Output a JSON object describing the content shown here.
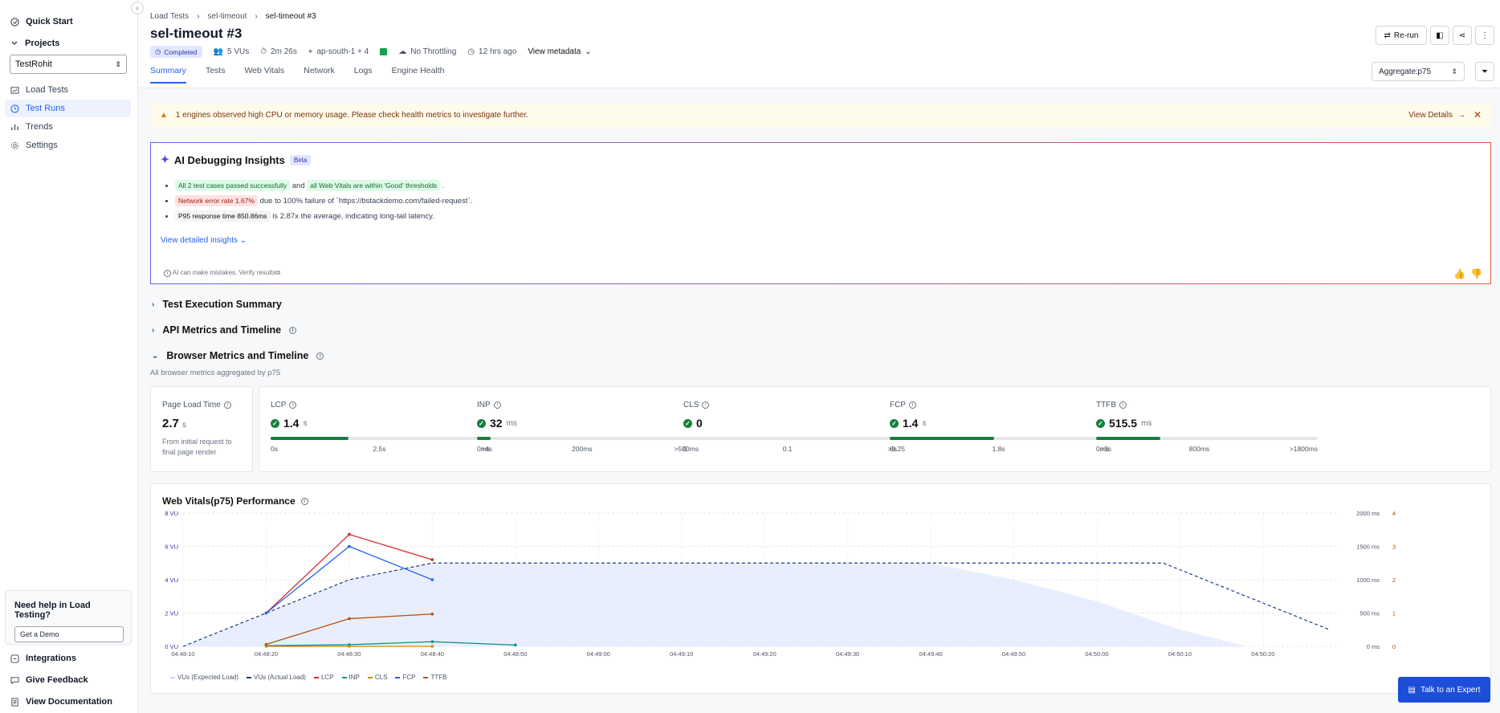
{
  "sidebar": {
    "quick_start": "Quick Start",
    "projects": "Projects",
    "project_selected": "TestRohit",
    "items": [
      "Load Tests",
      "Test Runs",
      "Trends",
      "Settings"
    ],
    "help_title": "Need help in Load Testing?",
    "help_button": "Get a Demo",
    "footer": [
      "Integrations",
      "Give Feedback",
      "View Documentation"
    ]
  },
  "header": {
    "breadcrumbs": [
      "Load Tests",
      "sel-timeout",
      "sel-timeout #3"
    ],
    "title": "sel-timeout #3",
    "status": "Completed",
    "vus": "5 VUs",
    "duration": "2m 26s",
    "region": "ap-south-1 + 4",
    "throttling": "No Throttling",
    "time_ago": "12 hrs ago",
    "view_metadata": "View metadata",
    "rerun": "Re-run",
    "tabs": [
      "Summary",
      "Tests",
      "Web Vitals",
      "Network",
      "Logs",
      "Engine Health"
    ],
    "aggregate_label": "Aggregate:",
    "aggregate_value": "p75"
  },
  "warning": {
    "text": "1 engines observed high CPU or memory usage. Please check health metrics to investigate further.",
    "action": "View Details"
  },
  "ai": {
    "title": "AI Debugging Insights",
    "beta": "Beta",
    "b1_chip1": "All 2 test cases passed successfully",
    "b1_mid": "and",
    "b1_chip2": "all Web Vitals are within 'Good' thresholds",
    "b1_end": ".",
    "b2_chip": "Network error rate 1.67%",
    "b2_text": "due to 100% failure of `https://bstackdemo.com/failed-request`.",
    "b3_chip": "P95 response time 850.86ms",
    "b3_text": "is 2.87x the average, indicating long-tail latency.",
    "view_more": "View detailed insights",
    "footer": "AI can make mistakes. Verify results"
  },
  "sections": {
    "test_exec": "Test Execution Summary",
    "api": "API Metrics and Timeline",
    "browser": "Browser Metrics and Timeline",
    "browser_sub": "All browser metrics aggregated by p75"
  },
  "page_load": {
    "label": "Page Load Time",
    "value": "2.7",
    "unit": "s",
    "desc1": "From initial request to",
    "desc2": "final page render"
  },
  "metrics": [
    {
      "name": "LCP",
      "value": "1.4",
      "unit": "s",
      "fill": 0.35,
      "scale": [
        "0s",
        "2.5s",
        ">4s"
      ]
    },
    {
      "name": "INP",
      "value": "32",
      "unit": "ms",
      "fill": 0.06,
      "scale": [
        "0ms",
        "200ms",
        ">500ms"
      ]
    },
    {
      "name": "CLS",
      "value": "0",
      "unit": "",
      "fill": 0.0,
      "scale": [
        "0",
        "0.1",
        ">0.25"
      ]
    },
    {
      "name": "FCP",
      "value": "1.4",
      "unit": "s",
      "fill": 0.47,
      "scale": [
        "0s",
        "1.8s",
        ">3s"
      ]
    },
    {
      "name": "TTFB",
      "value": "515.5",
      "unit": "ms",
      "fill": 0.29,
      "scale": [
        "0ms",
        "800ms",
        ">1800ms"
      ]
    }
  ],
  "chart_data": {
    "type": "line",
    "title": "Web Vitals(p75) Performance",
    "x": [
      "04:48:10",
      "04:48:20",
      "04:48:30",
      "04:48:40",
      "04:48:50",
      "04:49:00",
      "04:49:10",
      "04:49:20",
      "04:49:30",
      "04:49:40",
      "04:49:50",
      "04:50:00",
      "04:50:10",
      "04:50:20"
    ],
    "y_left_ticks": [
      "0 VU",
      "2 VU",
      "4 VU",
      "6 VU",
      "8 VU"
    ],
    "y_right_ms_ticks": [
      "0 ms",
      "500 ms",
      "1000 ms",
      "1500 ms",
      "2000 ms"
    ],
    "y_right_cls_ticks": [
      "0",
      "1",
      "2",
      "3",
      "4"
    ],
    "ylim_vu": [
      0,
      8
    ],
    "ylim_ms": [
      0,
      2000
    ],
    "series": [
      {
        "name": "VUs (Expected Load)",
        "type": "area",
        "points": [
          [
            0,
            0
          ],
          [
            1,
            2
          ],
          [
            2,
            4
          ],
          [
            3,
            5
          ],
          [
            4,
            5
          ],
          [
            5,
            5
          ],
          [
            6,
            5
          ],
          [
            7,
            5
          ],
          [
            8,
            5
          ],
          [
            9,
            5
          ],
          [
            10,
            4
          ],
          [
            11,
            2.7
          ],
          [
            12,
            1
          ],
          [
            12.8,
            0
          ]
        ]
      },
      {
        "name": "VUs (Actual Load)",
        "type": "dashed",
        "points": [
          [
            0,
            0
          ],
          [
            1,
            2
          ],
          [
            2,
            4
          ],
          [
            3,
            5
          ],
          [
            4,
            5
          ],
          [
            5,
            5
          ],
          [
            6,
            5
          ],
          [
            7,
            5
          ],
          [
            8,
            5
          ],
          [
            9,
            5
          ],
          [
            10,
            5
          ],
          [
            11,
            5
          ],
          [
            11.8,
            5
          ],
          [
            13.8,
            1
          ]
        ]
      },
      {
        "name": "LCP",
        "unit": "ms",
        "points": [
          [
            1,
            500
          ],
          [
            2,
            1680
          ],
          [
            3,
            1300
          ]
        ]
      },
      {
        "name": "INP",
        "unit": "ms",
        "points": [
          [
            1,
            10
          ],
          [
            2,
            25
          ],
          [
            3,
            70
          ],
          [
            4,
            20
          ]
        ]
      },
      {
        "name": "CLS",
        "unit": "score",
        "points": [
          [
            1,
            0
          ],
          [
            2,
            0
          ],
          [
            3,
            0
          ]
        ]
      },
      {
        "name": "FCP",
        "unit": "ms",
        "points": [
          [
            1,
            500
          ],
          [
            2,
            1500
          ],
          [
            3,
            1000
          ]
        ]
      },
      {
        "name": "TTFB",
        "unit": "ms",
        "points": [
          [
            1,
            30
          ],
          [
            2,
            415
          ],
          [
            3,
            485
          ]
        ]
      }
    ],
    "legend": [
      "VUs (Expected Load)",
      "VUs (Actual Load)",
      "LCP",
      "INP",
      "CLS",
      "FCP",
      "TTFB"
    ],
    "colors": {
      "area": "#e0e7ff",
      "dashed": "#1e3a8a",
      "LCP": "#dc2626",
      "INP": "#0d9488",
      "CLS": "#ca8a04",
      "FCP": "#2563eb",
      "TTFB": "#b45309"
    }
  },
  "talk_expert": "Talk to an Expert"
}
